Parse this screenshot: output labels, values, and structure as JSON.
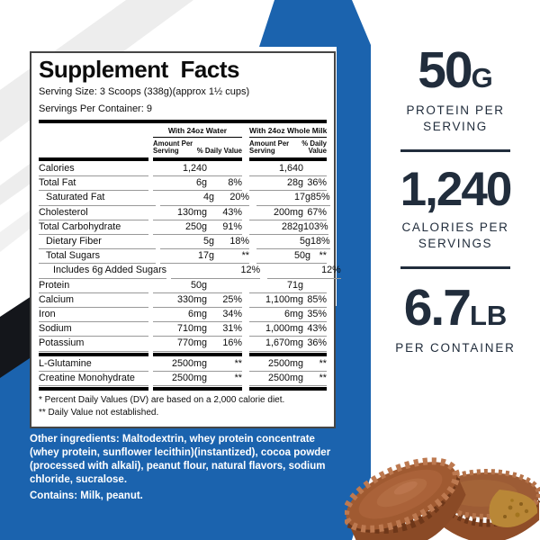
{
  "colors": {
    "brand_blue": "#1b63ae",
    "navy_text": "#212d3c",
    "stripe_black": "#14161b",
    "panel_border": "#454545",
    "row_rule_gray": "#999999"
  },
  "panel": {
    "title": "Supplement Facts",
    "serving_size": "Serving Size: 3 Scoops (338g)(approx 1½ cups)",
    "servings_per_container": "Servings Per Container: 9",
    "column_groups": [
      {
        "label": "With 24oz Water",
        "amount_header": "Amount Per Serving",
        "dv_header": "% Daily Value"
      },
      {
        "label": "With 24oz Whole Milk",
        "amount_header": "Amount Per Serving",
        "dv_header": "% Daily Value"
      }
    ],
    "rows": [
      {
        "name": "Calories",
        "indent": 0,
        "water_amount": "1,240",
        "water_dv": "",
        "milk_amount": "1,640",
        "milk_dv": ""
      },
      {
        "name": "Total Fat",
        "indent": 0,
        "water_amount": "6g",
        "water_dv": "8%",
        "milk_amount": "28g",
        "milk_dv": "36%"
      },
      {
        "name": "Saturated Fat",
        "indent": 1,
        "water_amount": "4g",
        "water_dv": "20%",
        "milk_amount": "17g",
        "milk_dv": "85%"
      },
      {
        "name": "Cholesterol",
        "indent": 0,
        "water_amount": "130mg",
        "water_dv": "43%",
        "milk_amount": "200mg",
        "milk_dv": "67%"
      },
      {
        "name": "Total Carbohydrate",
        "indent": 0,
        "water_amount": "250g",
        "water_dv": "91%",
        "milk_amount": "282g",
        "milk_dv": "103%"
      },
      {
        "name": "Dietary Fiber",
        "indent": 1,
        "water_amount": "5g",
        "water_dv": "18%",
        "milk_amount": "5g",
        "milk_dv": "18%"
      },
      {
        "name": "Total Sugars",
        "indent": 1,
        "water_amount": "17g",
        "water_dv": "**",
        "milk_amount": "50g",
        "milk_dv": "**"
      },
      {
        "name": "Includes 6g Added Sugars",
        "indent": 2,
        "water_amount": "",
        "water_dv": "12%",
        "milk_amount": "",
        "milk_dv": "12%"
      },
      {
        "name": "Protein",
        "indent": 0,
        "water_amount": "50g",
        "water_dv": "",
        "milk_amount": "71g",
        "milk_dv": ""
      },
      {
        "name": "Calcium",
        "indent": 0,
        "water_amount": "330mg",
        "water_dv": "25%",
        "milk_amount": "1,100mg",
        "milk_dv": "85%"
      },
      {
        "name": "Iron",
        "indent": 0,
        "water_amount": "6mg",
        "water_dv": "34%",
        "milk_amount": "6mg",
        "milk_dv": "35%"
      },
      {
        "name": "Sodium",
        "indent": 0,
        "water_amount": "710mg",
        "water_dv": "31%",
        "milk_amount": "1,000mg",
        "milk_dv": "43%"
      },
      {
        "name": "Potassium",
        "indent": 0,
        "water_amount": "770mg",
        "water_dv": "16%",
        "milk_amount": "1,670mg",
        "milk_dv": "36%",
        "thick_after": true
      },
      {
        "name": "L-Glutamine",
        "indent": 0,
        "water_amount": "2500mg",
        "water_dv": "**",
        "milk_amount": "2500mg",
        "milk_dv": "**"
      },
      {
        "name": "Creatine Monohydrate",
        "indent": 0,
        "water_amount": "2500mg",
        "water_dv": "**",
        "milk_amount": "2500mg",
        "milk_dv": "**",
        "thick_after": true
      }
    ],
    "footnotes": [
      "* Percent Daily Values (DV) are based on a 2,000 calorie diet.",
      "** Daily Value not established."
    ]
  },
  "other_ingredients": "Other ingredients: Maltodextrin, whey protein concentrate (whey protein, sunflower lecithin)(instantized), cocoa powder (processed with alkali), peanut flour, natural flavors, sodium chloride, sucralose.",
  "contains": "Contains: Milk, peanut.",
  "callouts": [
    {
      "value": "50",
      "unit": "G",
      "label": "PROTEIN PER SERVING"
    },
    {
      "value": "1,240",
      "unit": "",
      "label": "CALORIES PER SERVINGS"
    },
    {
      "value": "6.7",
      "unit": "LB",
      "label": "PER CONTAINER"
    }
  ],
  "photo": {
    "description": "chocolate peanut butter cups"
  }
}
